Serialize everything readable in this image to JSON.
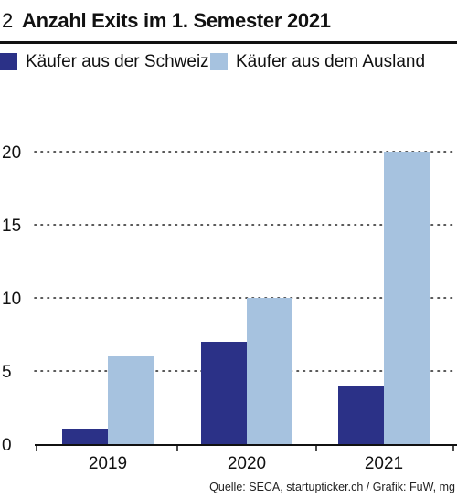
{
  "header": {
    "figure_number": "2",
    "title": "Anzahl Exits im 1. Semester 2021"
  },
  "source": "Quelle: SECA, startupticker.ch / Grafik: FuW, mg",
  "colors": {
    "domestic": "#2b3187",
    "foreign": "#a6c2df"
  },
  "chart_data": {
    "type": "bar",
    "title": "Anzahl Exits im 1. Semester 2021",
    "xlabel": "",
    "ylabel": "",
    "categories": [
      "2019",
      "2020",
      "2021"
    ],
    "series": [
      {
        "name": "Käufer aus der Schweiz",
        "values": [
          1,
          7,
          4
        ],
        "color": "#2b3187"
      },
      {
        "name": "Käufer aus dem Ausland",
        "values": [
          6,
          10,
          20
        ],
        "color": "#a6c2df"
      }
    ],
    "ylim": [
      0,
      20
    ],
    "yticks": [
      "0",
      "5",
      "10",
      "15",
      "20"
    ],
    "grid": "dotted horizontal",
    "legend_position": "top-left"
  }
}
